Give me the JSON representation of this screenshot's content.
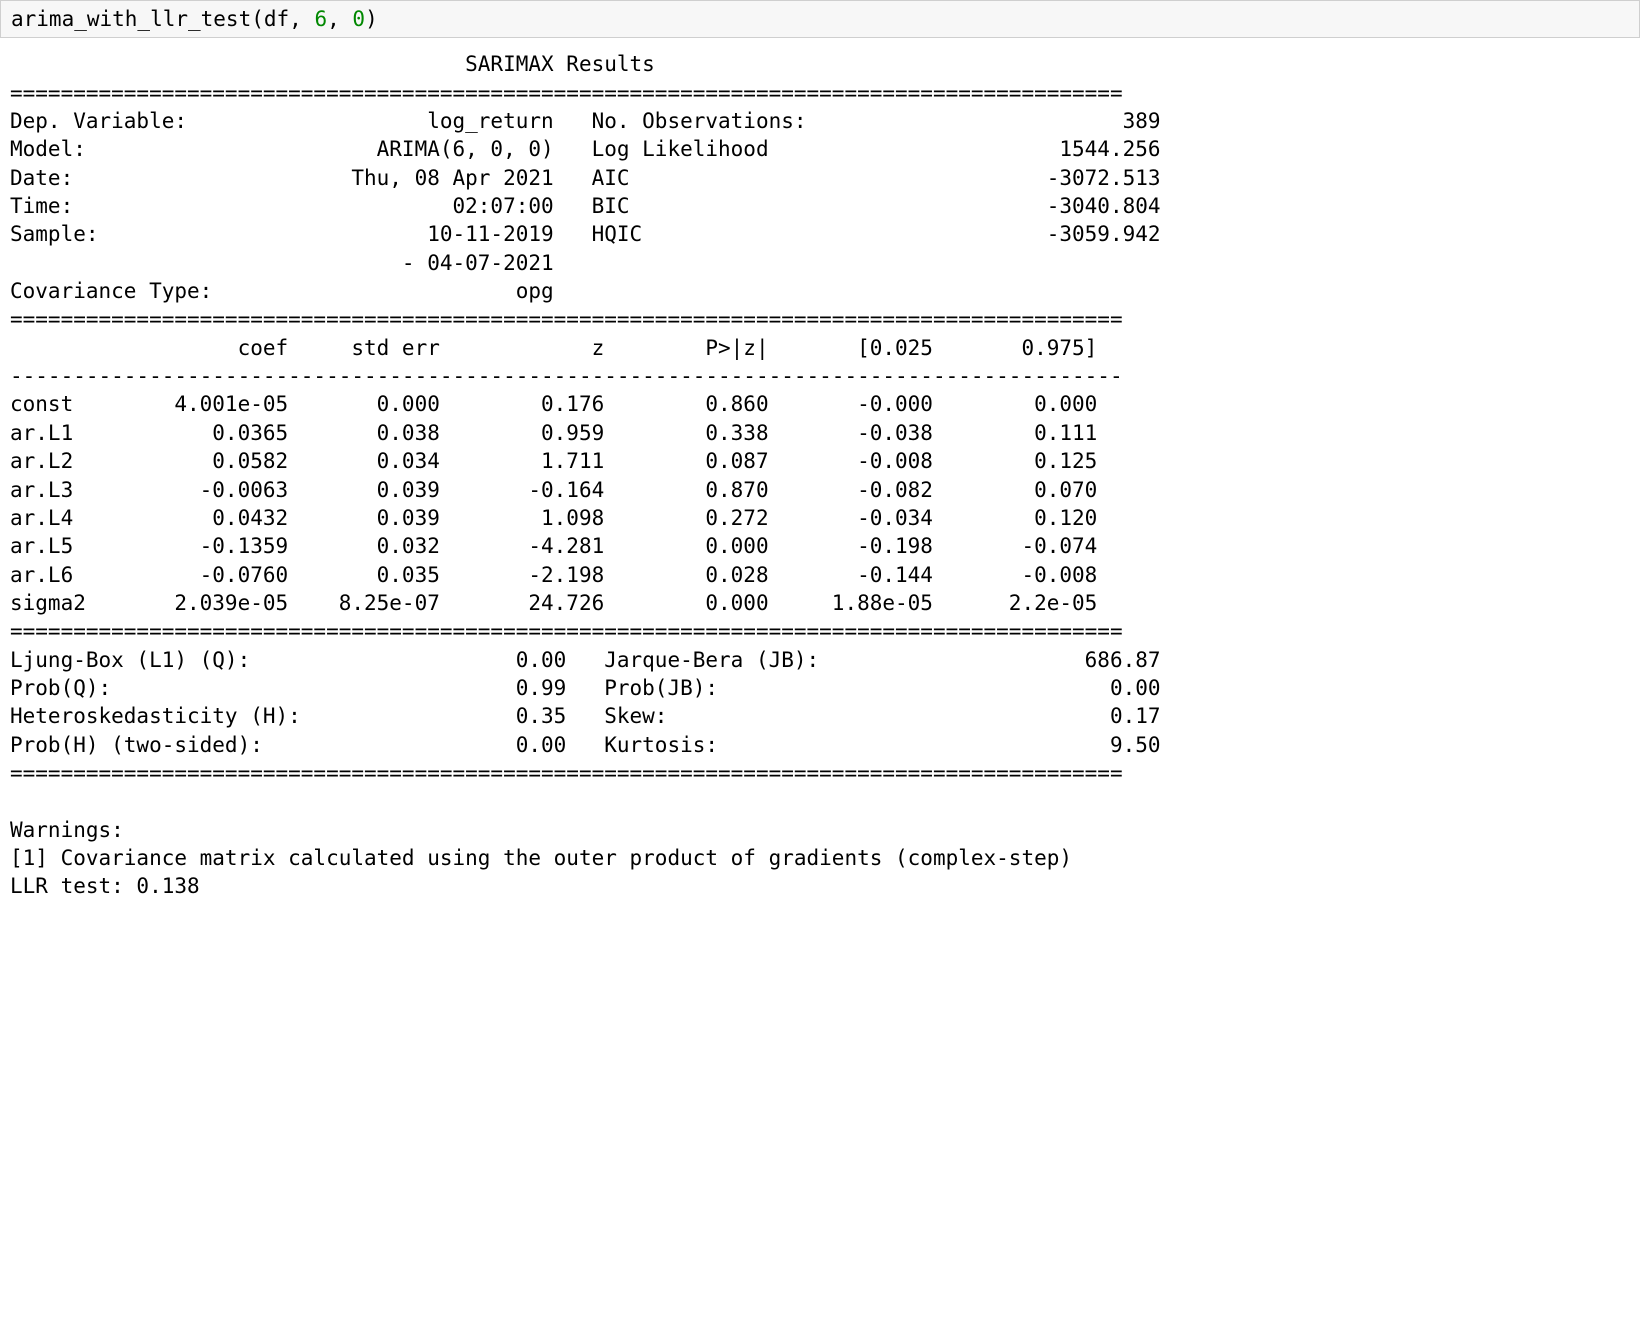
{
  "code_cell": {
    "fn": "arima_with_llr_test",
    "arg1": "df",
    "arg2": "6",
    "arg3": "0"
  },
  "title": "SARIMAX Results",
  "sep_eq_line_width": 88,
  "header": {
    "left_labels": [
      "Dep. Variable:",
      "Model:",
      "Date:",
      "Time:",
      "Sample:",
      "",
      "Covariance Type:"
    ],
    "left_values": [
      "log_return",
      "ARIMA(6, 0, 0)",
      "Thu, 08 Apr 2021",
      "02:07:00",
      "10-11-2019",
      "- 04-07-2021",
      "opg"
    ],
    "right_labels": [
      "No. Observations:",
      "Log Likelihood",
      "AIC",
      "BIC",
      "HQIC",
      "",
      ""
    ],
    "right_values": [
      "389",
      "1544.256",
      "-3072.513",
      "-3040.804",
      "-3059.942",
      "",
      ""
    ]
  },
  "coef_table": {
    "columns": [
      "",
      "coef",
      "std err",
      "z",
      "P>|z|",
      "[0.025",
      "0.975]"
    ],
    "rows": [
      [
        "const",
        "4.001e-05",
        "0.000",
        "0.176",
        "0.860",
        "-0.000",
        "0.000"
      ],
      [
        "ar.L1",
        "0.0365",
        "0.038",
        "0.959",
        "0.338",
        "-0.038",
        "0.111"
      ],
      [
        "ar.L2",
        "0.0582",
        "0.034",
        "1.711",
        "0.087",
        "-0.008",
        "0.125"
      ],
      [
        "ar.L3",
        "-0.0063",
        "0.039",
        "-0.164",
        "0.870",
        "-0.082",
        "0.070"
      ],
      [
        "ar.L4",
        "0.0432",
        "0.039",
        "1.098",
        "0.272",
        "-0.034",
        "0.120"
      ],
      [
        "ar.L5",
        "-0.1359",
        "0.032",
        "-4.281",
        "0.000",
        "-0.198",
        "-0.074"
      ],
      [
        "ar.L6",
        "-0.0760",
        "0.035",
        "-2.198",
        "0.028",
        "-0.144",
        "-0.008"
      ],
      [
        "sigma2",
        "2.039e-05",
        "8.25e-07",
        "24.726",
        "0.000",
        "1.88e-05",
        "2.2e-05"
      ]
    ]
  },
  "diagnostics": {
    "left_labels": [
      "Ljung-Box (L1) (Q):",
      "Prob(Q):",
      "Heteroskedasticity (H):",
      "Prob(H) (two-sided):"
    ],
    "left_values": [
      "0.00",
      "0.99",
      "0.35",
      "0.00"
    ],
    "right_labels": [
      "Jarque-Bera (JB):",
      "Prob(JB):",
      "Skew:",
      "Kurtosis:"
    ],
    "right_values": [
      "686.87",
      "0.00",
      "0.17",
      "9.50"
    ]
  },
  "warnings": {
    "header": "Warnings:",
    "lines": [
      "[1] Covariance matrix calculated using the outer product of gradients (complex-step)"
    ]
  },
  "llr_line": "LLR test: 0.138",
  "layout": {
    "header_left_label_w": 17,
    "header_left_value_w": 26,
    "header_right_label_w": 22,
    "header_right_value_w": 23,
    "coef_col_w": [
      8,
      14,
      12,
      13,
      13,
      13,
      13
    ],
    "diag_left_label_w": 34,
    "diag_left_value_w": 10,
    "diag_right_label_w": 22,
    "diag_right_value_w": 22
  }
}
